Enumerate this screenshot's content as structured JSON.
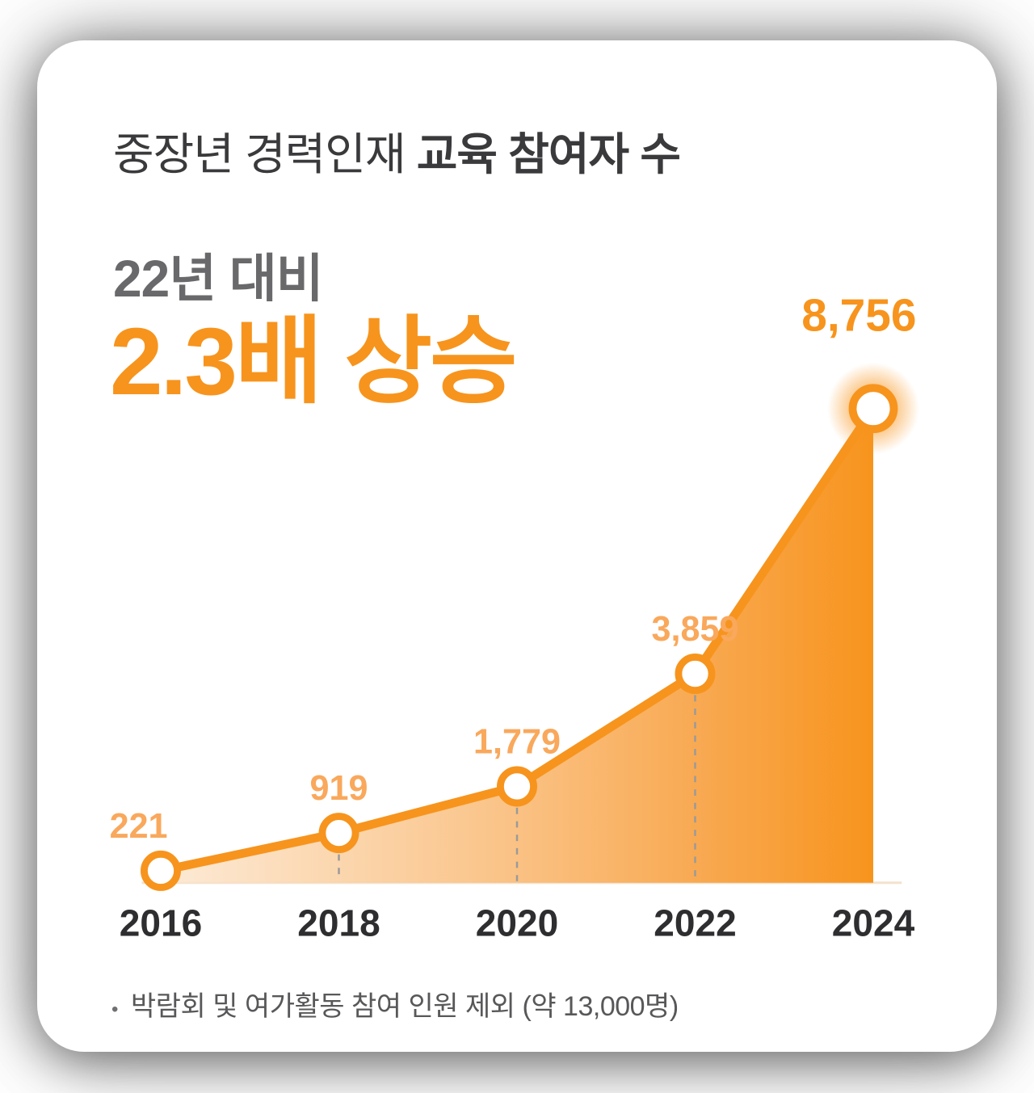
{
  "header": {
    "title_prefix": "중장년 경력인재 ",
    "title_emphasis": "교육 참여자 수"
  },
  "headline": {
    "comparison": "22년 대비",
    "highlight": "2.3배 상승"
  },
  "footnote": {
    "bullet": "•",
    "text": "박람회 및 여가활동 참여 인원 제외 (약 13,000명)"
  },
  "colors": {
    "accent_orange": "#F7941D",
    "label_orange_light": "#F9A85C",
    "label_orange_strong": "#F7941D",
    "title_dark": "#3A3A3C",
    "subtitle_gray": "#69696B",
    "axis_dark": "#2E2E30",
    "footnote_gray": "#58585A",
    "baseline_peach": "#F3E2CE",
    "dash_gray": "#9A9A9A",
    "area_gradient_start": "#FCE8D2",
    "area_gradient_mid": "#FAC183",
    "area_gradient_end": "#F7941D"
  },
  "chart_data": {
    "type": "area",
    "title": "중장년 경력인재 교육 참여자 수",
    "annotation": "22년 대비 2.3배 상승",
    "categories": [
      "2016",
      "2018",
      "2020",
      "2022",
      "2024"
    ],
    "values": [
      221,
      919,
      1779,
      3859,
      8756
    ],
    "value_labels": [
      "221",
      "919",
      "1,779",
      "3,859",
      "8,756"
    ],
    "xlabel": "",
    "ylabel": "",
    "ylim": [
      0,
      8756
    ],
    "grid": false,
    "legend": false,
    "marker": "circle-open",
    "highlight_point_index": 4
  }
}
